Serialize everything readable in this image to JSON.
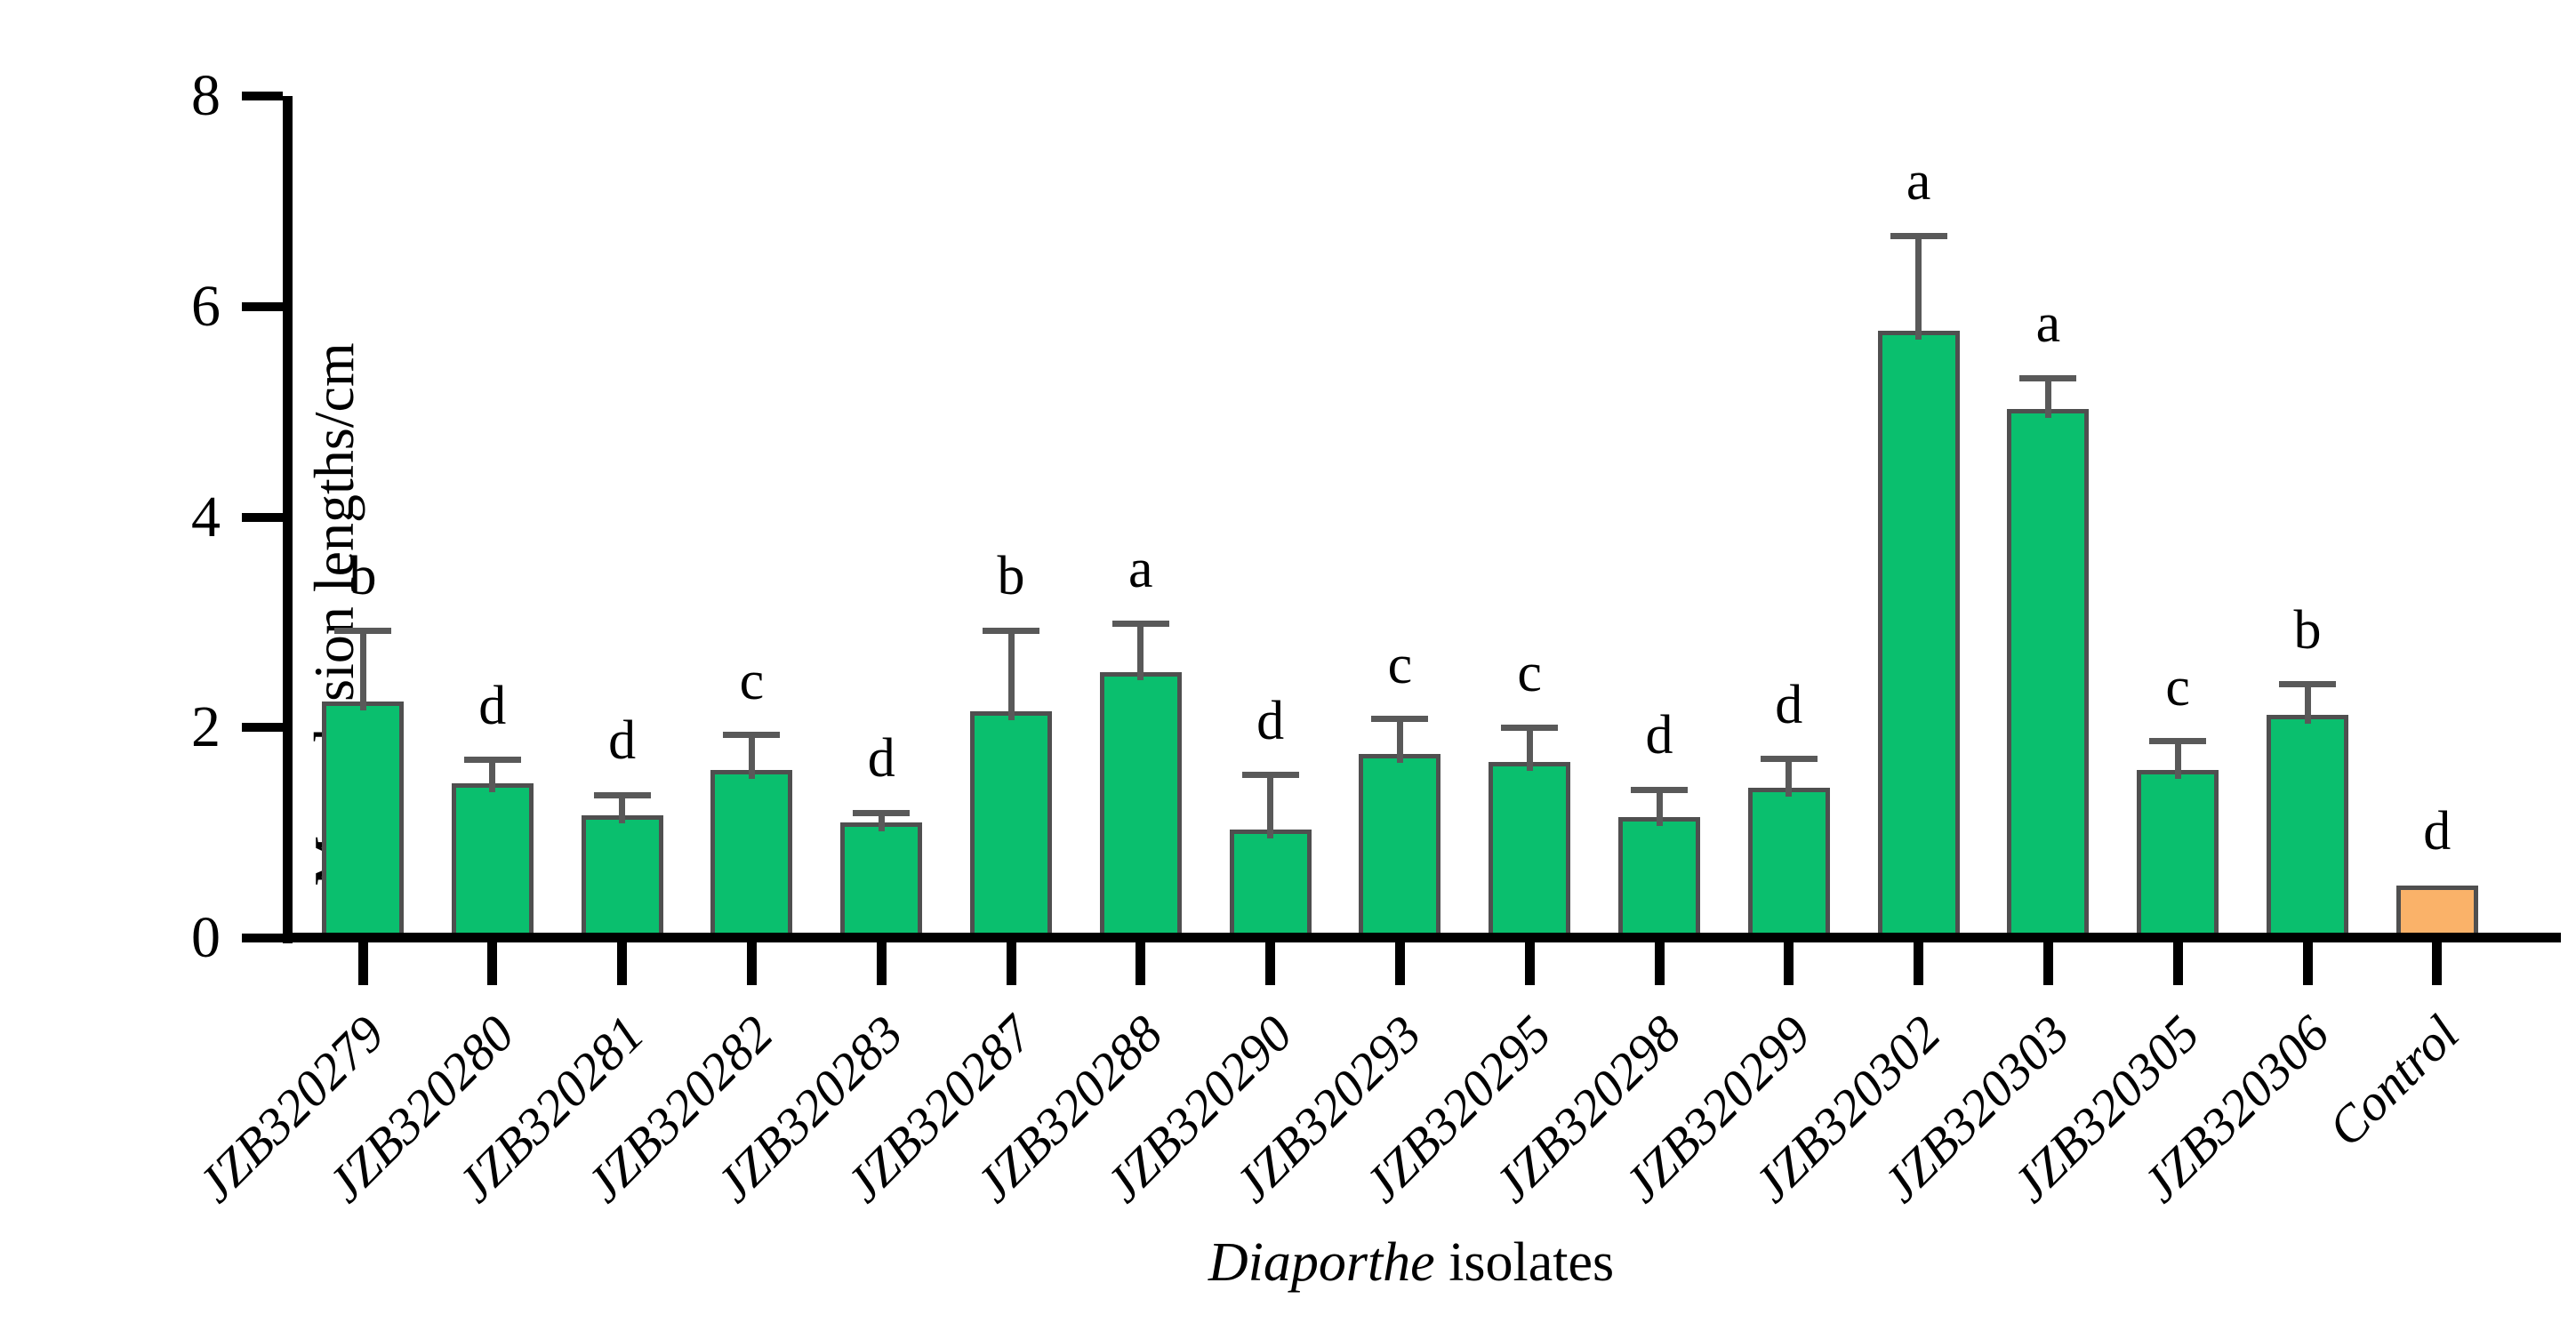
{
  "chart_data": {
    "type": "bar",
    "title": "",
    "ylabel": "Mean lesion lengths/cm",
    "xlabel_italic_part": "Diaporthe",
    "xlabel_regular_part": "isolates",
    "ylim": [
      0,
      8
    ],
    "yticks": [
      0,
      2,
      4,
      6,
      8
    ],
    "grid": false,
    "legend_position": "none",
    "error_bars": "upper_only",
    "categories": [
      "JZB320279",
      "JZB320280",
      "JZB320281",
      "JZB320282",
      "JZB320283",
      "JZB320287",
      "JZB320288",
      "JZB320290",
      "JZB320293",
      "JZB320295",
      "JZB320298",
      "JZB320299",
      "JZB320302",
      "JZB320303",
      "JZB320305",
      "JZB320306",
      "Control"
    ],
    "values": [
      2.25,
      1.47,
      1.17,
      1.6,
      1.1,
      2.15,
      2.53,
      1.03,
      1.75,
      1.67,
      1.15,
      1.43,
      5.77,
      5.03,
      1.6,
      2.12,
      0.5
    ],
    "upper_errors": [
      0.67,
      0.22,
      0.19,
      0.33,
      0.09,
      0.77,
      0.46,
      0.52,
      0.33,
      0.33,
      0.26,
      0.27,
      0.9,
      0.29,
      0.27,
      0.29,
      0
    ],
    "significance_letters": [
      "b",
      "d",
      "d",
      "c",
      "d",
      "b",
      "a",
      "d",
      "c",
      "c",
      "d",
      "d",
      "a",
      "a",
      "c",
      "b",
      "d"
    ],
    "colors": {
      "bar_fill": "#0ABF6E",
      "control_fill": "#FAB269",
      "bar_border": "#4F4F4F",
      "error_bar": "#595959",
      "axis": "#000000",
      "background": "#FFFFFF"
    }
  }
}
